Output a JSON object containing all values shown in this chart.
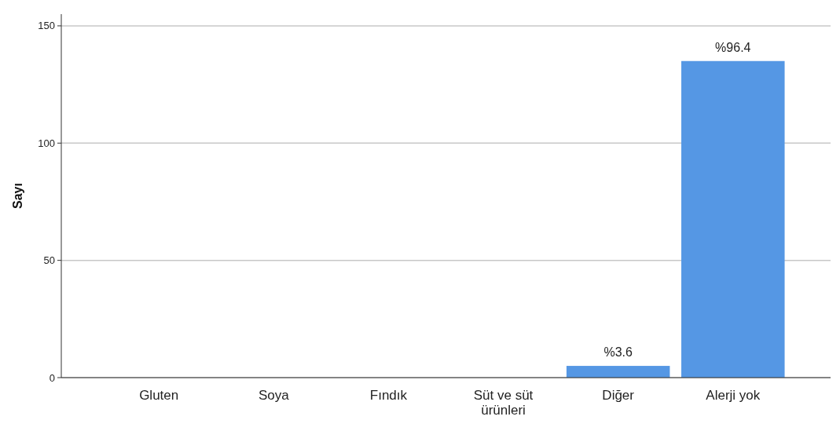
{
  "chart_data": {
    "type": "bar",
    "ylabel": "Sayı",
    "categories": [
      "Gluten",
      "Soya",
      "Fındık",
      "Süt ve süt ürünleri",
      "Diğer",
      "Alerji yok"
    ],
    "values": [
      0,
      0,
      0,
      0,
      5,
      135
    ],
    "annotations": [
      {
        "text": "%3.6",
        "x": "Diğer",
        "y": 5
      },
      {
        "text": "%96.4",
        "x": "Alerji yok",
        "y": 135
      }
    ],
    "color": "#5597e4",
    "ylim": [
      0,
      155
    ],
    "yticks": [
      0,
      50,
      100,
      150
    ],
    "grid": "y"
  }
}
